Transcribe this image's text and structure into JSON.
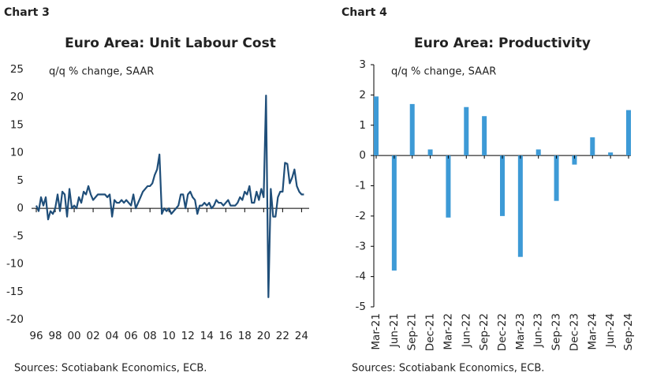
{
  "chart_data": [
    {
      "type": "line",
      "chart_label": "Chart 3",
      "title": "Euro Area: Unit Labour Cost",
      "subtitle": "q/q % change, SAAR",
      "source": "Sources: Scotiabank Economics, ECB.",
      "color": "#1f4e79",
      "x": [
        1996,
        1996.25,
        1996.5,
        1996.75,
        1997,
        1997.25,
        1997.5,
        1997.75,
        1998,
        1998.25,
        1998.5,
        1998.75,
        1999,
        1999.25,
        1999.5,
        1999.75,
        2000,
        2000.25,
        2000.5,
        2000.75,
        2001,
        2001.25,
        2001.5,
        2001.75,
        2002,
        2002.25,
        2002.5,
        2002.75,
        2003,
        2003.25,
        2003.5,
        2003.75,
        2004,
        2004.25,
        2004.5,
        2004.75,
        2005,
        2005.25,
        2005.5,
        2005.75,
        2006,
        2006.25,
        2006.5,
        2006.75,
        2007,
        2007.25,
        2007.5,
        2007.75,
        2008,
        2008.25,
        2008.5,
        2008.75,
        2009,
        2009.25,
        2009.5,
        2009.75,
        2010,
        2010.25,
        2010.5,
        2010.75,
        2011,
        2011.25,
        2011.5,
        2011.75,
        2012,
        2012.25,
        2012.5,
        2012.75,
        2013,
        2013.25,
        2013.5,
        2013.75,
        2014,
        2014.25,
        2014.5,
        2014.75,
        2015,
        2015.25,
        2015.5,
        2015.75,
        2016,
        2016.25,
        2016.5,
        2016.75,
        2017,
        2017.25,
        2017.5,
        2017.75,
        2018,
        2018.25,
        2018.5,
        2018.75,
        2019,
        2019.25,
        2019.5,
        2019.75,
        2020,
        2020.25,
        2020.5,
        2020.75,
        2021,
        2021.25,
        2021.5,
        2021.75,
        2022,
        2022.25,
        2022.5,
        2022.75,
        2023,
        2023.25,
        2023.5,
        2023.75,
        2024,
        2024.25
      ],
      "values": [
        0.5,
        -0.5,
        2,
        0.5,
        2,
        -2,
        -0.5,
        -1,
        0,
        2.5,
        -0.5,
        3,
        2.5,
        -1.5,
        3.5,
        0,
        0.5,
        0,
        2,
        1,
        3,
        2.5,
        4,
        2.5,
        1.5,
        2,
        2.5,
        2.5,
        2.5,
        2.5,
        2,
        2.5,
        -1.5,
        1.5,
        1,
        1,
        1.5,
        1,
        1.5,
        1,
        0.5,
        2.5,
        0,
        1,
        2,
        3,
        3.5,
        4,
        4,
        4.5,
        6,
        7,
        9.7,
        -1,
        0,
        -0.5,
        0,
        -1,
        -0.5,
        0,
        0.5,
        2.5,
        2.5,
        0,
        2.5,
        3,
        2,
        1.5,
        -1,
        0.5,
        0.5,
        1,
        0.5,
        1,
        0,
        0.5,
        1.5,
        1,
        1,
        0.5,
        1,
        1.5,
        0.5,
        0.5,
        0.5,
        1,
        2,
        1.5,
        3,
        2.5,
        4,
        1,
        1,
        3,
        1.5,
        3.5,
        2,
        20.3,
        -16,
        3.5,
        -1.5,
        -1.5,
        2,
        3,
        3,
        8.2,
        8,
        4.5,
        5.5,
        7,
        4,
        3,
        2.5,
        2.5
      ],
      "xlim": [
        1995.5,
        2024.8
      ],
      "xticks": [
        {
          "value": 1996,
          "label": "96"
        },
        {
          "value": 1998,
          "label": "98"
        },
        {
          "value": 2000,
          "label": "00"
        },
        {
          "value": 2002,
          "label": "02"
        },
        {
          "value": 2004,
          "label": "04"
        },
        {
          "value": 2006,
          "label": "06"
        },
        {
          "value": 2008,
          "label": "08"
        },
        {
          "value": 2010,
          "label": "10"
        },
        {
          "value": 2012,
          "label": "12"
        },
        {
          "value": 2014,
          "label": "14"
        },
        {
          "value": 2016,
          "label": "16"
        },
        {
          "value": 2018,
          "label": "18"
        },
        {
          "value": 2020,
          "label": "20"
        },
        {
          "value": 2022,
          "label": "22"
        },
        {
          "value": 2024,
          "label": "24"
        }
      ],
      "ylim": [
        -20,
        25
      ],
      "yticks": [
        -20,
        -15,
        -10,
        -5,
        0,
        5,
        10,
        15,
        20,
        25
      ]
    },
    {
      "type": "bar",
      "chart_label": "Chart 4",
      "title": "Euro Area: Productivity",
      "subtitle": "q/q % change, SAAR",
      "source": "Sources: Scotiabank Economics, ECB.",
      "color": "#3d9ad6",
      "categories": [
        "Mar-21",
        "Jun-21",
        "Sep-21",
        "Dec-21",
        "Mar-22",
        "Jun-22",
        "Sep-22",
        "Dec-22",
        "Mar-23",
        "Jun-23",
        "Sep-23",
        "Dec-23",
        "Mar-24",
        "Jun-24",
        "Sep-24"
      ],
      "values": [
        1.95,
        -3.8,
        1.7,
        0.2,
        -2.05,
        1.6,
        1.3,
        -2.0,
        -3.35,
        0.2,
        -1.5,
        -0.3,
        0.6,
        0.1,
        1.5
      ],
      "ylim": [
        -5,
        3
      ],
      "yticks": [
        -5,
        -4,
        -3,
        -2,
        -1,
        0,
        1,
        2,
        3
      ]
    }
  ]
}
